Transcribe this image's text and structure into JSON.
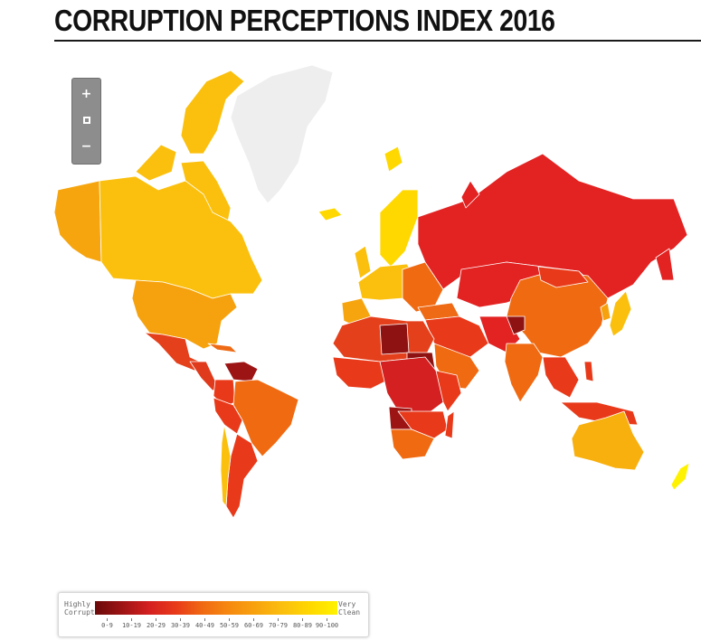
{
  "header": {
    "title": "CORRUPTION PERCEPTIONS INDEX 2016"
  },
  "zoom_control": {
    "zoom_in_label": "+",
    "zoom_out_label": "−"
  },
  "legend": {
    "left_label_line1": "Highly",
    "left_label_line2": "Corrupt",
    "right_label_line1": "Very",
    "right_label_line2": "Clean",
    "ranges": [
      "0-9",
      "10-19",
      "20-29",
      "30-39",
      "40-49",
      "50-59",
      "60-69",
      "70-79",
      "80-89",
      "90-100"
    ],
    "colors": [
      "#6b0a0a",
      "#9d1414",
      "#d42020",
      "#e83a1a",
      "#f06a12",
      "#f68a10",
      "#f8a40e",
      "#fbc00e",
      "#ffd800",
      "#fff200"
    ]
  },
  "map_colors": {
    "no_data": "#eeeeee",
    "border": "#ffffff"
  }
}
